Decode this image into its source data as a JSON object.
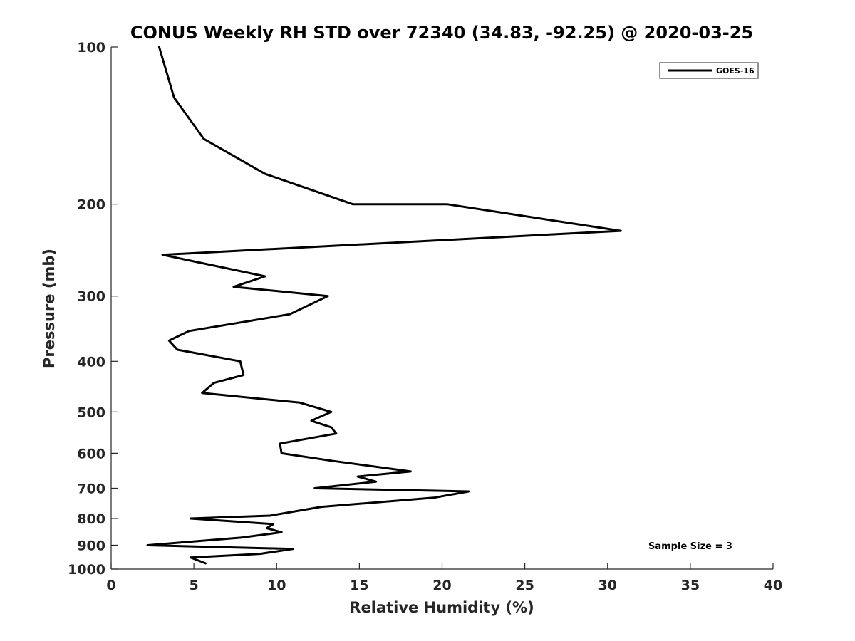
{
  "chart_data": {
    "type": "line",
    "title": "CONUS Weekly RH STD over 72340 (34.83, -92.25) @ 2020-03-25",
    "xlabel": "Relative Humidity (%)",
    "ylabel": "Pressure (mb)",
    "xlim": [
      0,
      40
    ],
    "ylim": [
      100,
      1000
    ],
    "y_scale": "log",
    "y_reversed": true,
    "x_ticks": [
      "0",
      "5",
      "10",
      "15",
      "20",
      "25",
      "30",
      "35",
      "40"
    ],
    "y_ticks": [
      "100",
      "200",
      "300",
      "400",
      "500",
      "600",
      "700",
      "800",
      "900",
      "1000"
    ],
    "grid": false,
    "legend_position": "top-right",
    "annotation": "Sample Size = 3",
    "series": [
      {
        "name": "GOES-16",
        "color": "#000000",
        "points": [
          [
            2.9,
            100
          ],
          [
            3.8,
            125
          ],
          [
            5.6,
            150
          ],
          [
            9.3,
            175
          ],
          [
            14.6,
            200
          ],
          [
            20.3,
            200
          ],
          [
            30.8,
            225
          ],
          [
            3.1,
            250
          ],
          [
            9.3,
            275
          ],
          [
            7.4,
            288
          ],
          [
            13.1,
            300
          ],
          [
            10.8,
            325
          ],
          [
            4.7,
            350
          ],
          [
            3.5,
            365
          ],
          [
            4.0,
            380
          ],
          [
            7.8,
            400
          ],
          [
            8.0,
            425
          ],
          [
            6.2,
            440
          ],
          [
            5.5,
            460
          ],
          [
            11.4,
            480
          ],
          [
            13.3,
            500
          ],
          [
            12.1,
            520
          ],
          [
            13.3,
            535
          ],
          [
            13.6,
            550
          ],
          [
            10.2,
            575
          ],
          [
            10.3,
            600
          ],
          [
            13.3,
            620
          ],
          [
            18.1,
            650
          ],
          [
            14.9,
            665
          ],
          [
            16.0,
            680
          ],
          [
            12.3,
            700
          ],
          [
            21.6,
            710
          ],
          [
            19.5,
            730
          ],
          [
            12.7,
            760
          ],
          [
            9.6,
            790
          ],
          [
            4.8,
            800
          ],
          [
            9.8,
            820
          ],
          [
            9.4,
            835
          ],
          [
            10.3,
            850
          ],
          [
            7.9,
            870
          ],
          [
            2.2,
            900
          ],
          [
            11.0,
            915
          ],
          [
            9.0,
            935
          ],
          [
            4.8,
            950
          ],
          [
            5.7,
            975
          ]
        ]
      }
    ]
  }
}
